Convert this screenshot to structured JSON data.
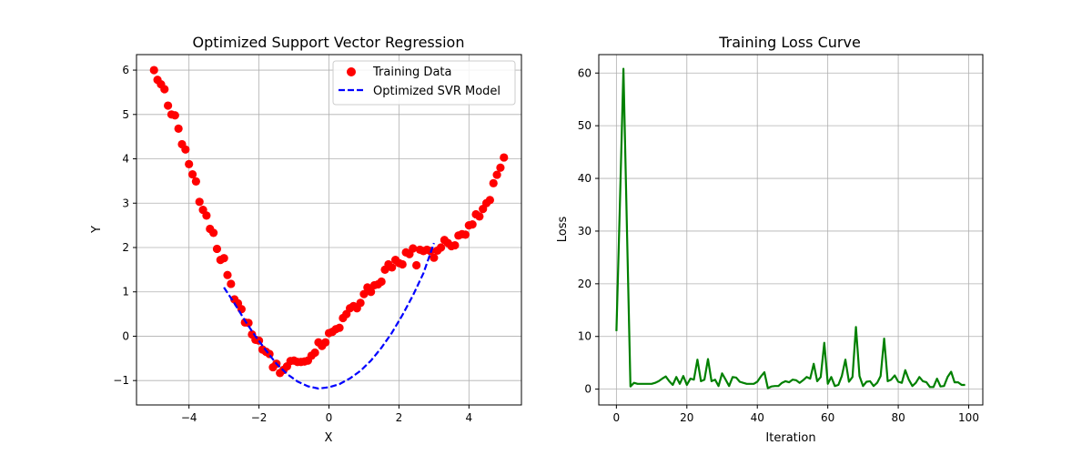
{
  "chart_data": [
    {
      "type": "scatter",
      "title": "Optimized Support Vector Regression",
      "xlabel": "X",
      "ylabel": "Y",
      "xlim": [
        -5.5,
        5.5
      ],
      "ylim": [
        -1.55,
        6.35
      ],
      "xticks": [
        -4,
        -2,
        0,
        2,
        4
      ],
      "yticks": [
        -1,
        0,
        1,
        2,
        3,
        4,
        5,
        6
      ],
      "xtick_labels": [
        "−4",
        "−2",
        "0",
        "2",
        "4"
      ],
      "ytick_labels": [
        "−1",
        "0",
        "1",
        "2",
        "3",
        "4",
        "5",
        "6"
      ],
      "grid": true,
      "legend_position": "top-right",
      "series": [
        {
          "name": "Training Data",
          "kind": "scatter",
          "color": "#ff0000",
          "x": [
            -5.0,
            -4.9,
            -4.8,
            -4.7,
            -4.6,
            -4.5,
            -4.4,
            -4.3,
            -4.2,
            -4.1,
            -4.0,
            -3.9,
            -3.8,
            -3.7,
            -3.6,
            -3.5,
            -3.4,
            -3.3,
            -3.2,
            -3.1,
            -3.0,
            -2.9,
            -2.8,
            -2.7,
            -2.6,
            -2.5,
            -2.4,
            -2.3,
            -2.2,
            -2.1,
            -2.0,
            -1.9,
            -1.8,
            -1.7,
            -1.6,
            -1.5,
            -1.4,
            -1.3,
            -1.2,
            -1.1,
            -1.0,
            -0.9,
            -0.8,
            -0.7,
            -0.6,
            -0.5,
            -0.4,
            -0.3,
            -0.2,
            -0.1,
            0.0,
            0.1,
            0.2,
            0.3,
            0.4,
            0.5,
            0.6,
            0.7,
            0.8,
            0.9,
            1.0,
            1.1,
            1.2,
            1.3,
            1.4,
            1.5,
            1.6,
            1.7,
            1.8,
            1.9,
            2.0,
            2.1,
            2.2,
            2.3,
            2.4,
            2.5,
            2.6,
            2.7,
            2.8,
            2.9,
            3.0,
            3.1,
            3.2,
            3.3,
            3.4,
            3.5,
            3.6,
            3.7,
            3.8,
            3.9,
            4.0,
            4.1,
            4.2,
            4.3,
            4.4,
            4.5,
            4.6,
            4.7,
            4.8,
            4.9,
            5.0
          ],
          "y": [
            6.0,
            5.78,
            5.68,
            5.57,
            5.2,
            5.0,
            4.98,
            4.68,
            4.33,
            4.21,
            3.88,
            3.65,
            3.49,
            3.03,
            2.85,
            2.72,
            2.42,
            2.33,
            1.97,
            1.72,
            1.76,
            1.38,
            1.18,
            0.83,
            0.74,
            0.61,
            0.31,
            0.3,
            0.04,
            -0.08,
            -0.1,
            -0.3,
            -0.35,
            -0.4,
            -0.7,
            -0.62,
            -0.83,
            -0.76,
            -0.68,
            -0.56,
            -0.55,
            -0.58,
            -0.58,
            -0.57,
            -0.55,
            -0.44,
            -0.37,
            -0.14,
            -0.22,
            -0.14,
            0.07,
            0.1,
            0.16,
            0.19,
            0.41,
            0.5,
            0.63,
            0.68,
            0.63,
            0.75,
            0.95,
            1.1,
            1.0,
            1.15,
            1.17,
            1.23,
            1.5,
            1.62,
            1.55,
            1.72,
            1.65,
            1.62,
            1.89,
            1.85,
            1.98,
            1.6,
            1.95,
            1.92,
            1.95,
            1.92,
            1.77,
            1.93,
            2.0,
            2.17,
            2.1,
            2.03,
            2.05,
            2.27,
            2.3,
            2.29,
            2.5,
            2.52,
            2.75,
            2.7,
            2.87,
            3.0,
            3.07,
            3.45,
            3.64,
            3.8,
            4.03
          ]
        },
        {
          "name": "Optimized SVR Model",
          "kind": "dashed-line",
          "color": "#0000ff",
          "x": [
            -3.0,
            -2.7,
            -2.4,
            -2.1,
            -1.8,
            -1.5,
            -1.2,
            -0.9,
            -0.6,
            -0.3,
            0.0,
            0.3,
            0.6,
            0.9,
            1.2,
            1.5,
            1.8,
            2.1,
            2.4,
            2.7,
            3.0
          ],
          "y": [
            1.1,
            0.74,
            0.35,
            0.0,
            -0.32,
            -0.62,
            -0.85,
            -1.02,
            -1.13,
            -1.18,
            -1.15,
            -1.08,
            -0.95,
            -0.78,
            -0.55,
            -0.26,
            0.08,
            0.48,
            0.92,
            1.42,
            2.1
          ]
        }
      ]
    },
    {
      "type": "line",
      "title": "Training Loss Curve",
      "xlabel": "Iteration",
      "ylabel": "Loss",
      "xlim": [
        -5,
        104
      ],
      "ylim": [
        -3.0,
        63.5
      ],
      "xticks": [
        0,
        20,
        40,
        60,
        80,
        100
      ],
      "yticks": [
        0,
        10,
        20,
        30,
        40,
        50,
        60
      ],
      "xtick_labels": [
        "0",
        "20",
        "40",
        "60",
        "80",
        "100"
      ],
      "ytick_labels": [
        "0",
        "10",
        "20",
        "30",
        "40",
        "50",
        "60"
      ],
      "grid": true,
      "series": [
        {
          "kind": "line",
          "color": "#008000",
          "x": [
            0,
            1,
            2,
            3,
            4,
            5,
            6,
            7,
            8,
            9,
            10,
            11,
            12,
            13,
            14,
            15,
            16,
            17,
            18,
            19,
            20,
            21,
            22,
            23,
            24,
            25,
            26,
            27,
            28,
            29,
            30,
            31,
            32,
            33,
            34,
            35,
            36,
            37,
            38,
            39,
            40,
            41,
            42,
            43,
            44,
            45,
            46,
            47,
            48,
            49,
            50,
            51,
            52,
            53,
            54,
            55,
            56,
            57,
            58,
            59,
            60,
            61,
            62,
            63,
            64,
            65,
            66,
            67,
            68,
            69,
            70,
            71,
            72,
            73,
            74,
            75,
            76,
            77,
            78,
            79,
            80,
            81,
            82,
            83,
            84,
            85,
            86,
            87,
            88,
            89,
            90,
            91,
            92,
            93,
            94,
            95,
            96,
            97,
            98,
            99
          ],
          "y": [
            11.0,
            35.0,
            60.8,
            30.0,
            0.5,
            1.2,
            1.0,
            1.0,
            1.0,
            1.0,
            1.0,
            1.2,
            1.5,
            2.0,
            2.4,
            1.5,
            0.8,
            2.3,
            1.0,
            2.5,
            0.8,
            2.0,
            1.8,
            5.6,
            1.5,
            1.8,
            5.7,
            1.5,
            1.8,
            0.6,
            3.0,
            1.8,
            0.6,
            2.3,
            2.2,
            1.4,
            1.2,
            1.0,
            1.0,
            1.0,
            1.4,
            2.4,
            3.2,
            0.2,
            0.5,
            0.6,
            0.6,
            1.2,
            1.5,
            1.3,
            1.8,
            1.7,
            1.2,
            1.7,
            2.3,
            2.0,
            4.8,
            1.5,
            2.3,
            8.8,
            1.0,
            2.3,
            0.6,
            0.8,
            2.5,
            5.6,
            1.4,
            2.3,
            11.8,
            2.5,
            0.6,
            1.4,
            1.5,
            0.6,
            1.2,
            2.5,
            9.6,
            1.5,
            1.8,
            2.6,
            1.4,
            1.2,
            3.6,
            1.8,
            0.6,
            1.2,
            2.3,
            1.5,
            1.3,
            0.4,
            0.4,
            2.0,
            0.5,
            0.6,
            2.3,
            3.3,
            1.3,
            1.3,
            0.8,
            0.8
          ]
        }
      ]
    }
  ]
}
